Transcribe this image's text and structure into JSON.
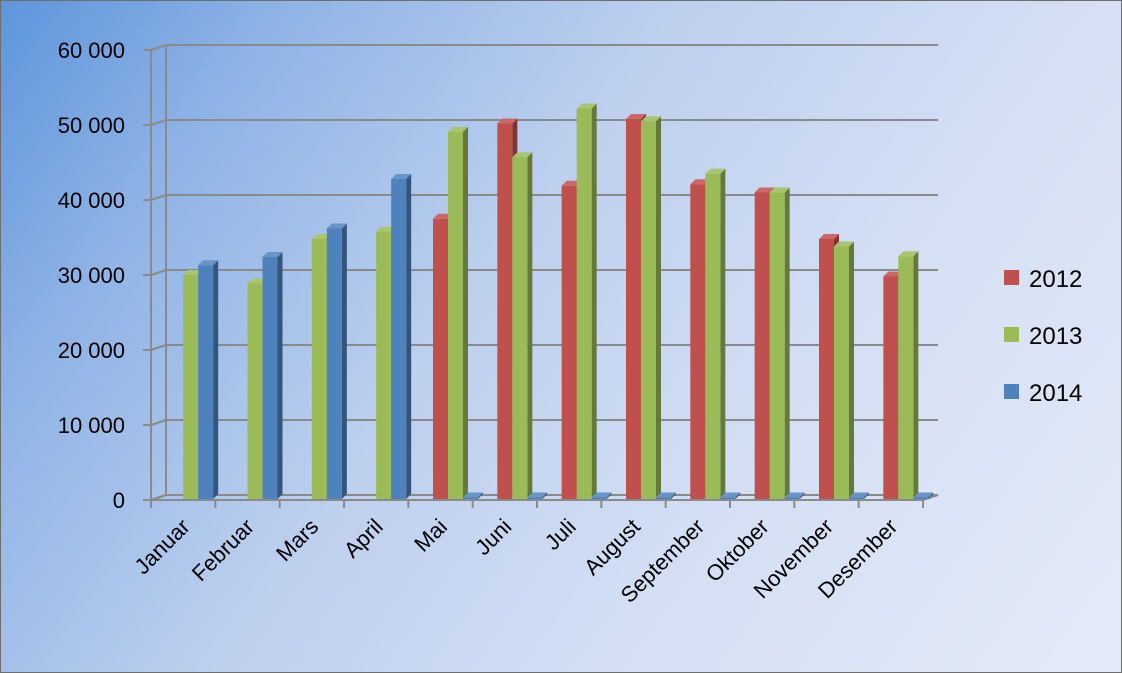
{
  "chart_data": {
    "type": "bar",
    "title": "",
    "xlabel": "",
    "ylabel": "",
    "ylim": [
      0,
      60000
    ],
    "yticks": [
      0,
      10000,
      20000,
      30000,
      40000,
      50000,
      60000
    ],
    "ytick_labels": [
      "0",
      "10 000",
      "20 000",
      "30 000",
      "40 000",
      "50 000",
      "60 000"
    ],
    "categories": [
      "Januar",
      "Februar",
      "Mars",
      "April",
      "Mai",
      "Juni",
      "Juli",
      "August",
      "September",
      "Oktober",
      "November",
      "Desember"
    ],
    "series": [
      {
        "name": "2012",
        "color": "#c0504d",
        "values": [
          null,
          null,
          null,
          null,
          37500,
          50200,
          41900,
          50800,
          42100,
          41000,
          34800,
          29800
        ]
      },
      {
        "name": "2013",
        "color": "#9bbb59",
        "values": [
          30000,
          28900,
          34800,
          35800,
          49100,
          45700,
          52200,
          50500,
          43500,
          41000,
          33800,
          32500
        ]
      },
      {
        "name": "2014",
        "color": "#4f81bd",
        "values": [
          31300,
          32400,
          36200,
          42800,
          0,
          0,
          0,
          0,
          0,
          0,
          0,
          0
        ]
      }
    ],
    "grid": true,
    "legend_position": "right"
  }
}
